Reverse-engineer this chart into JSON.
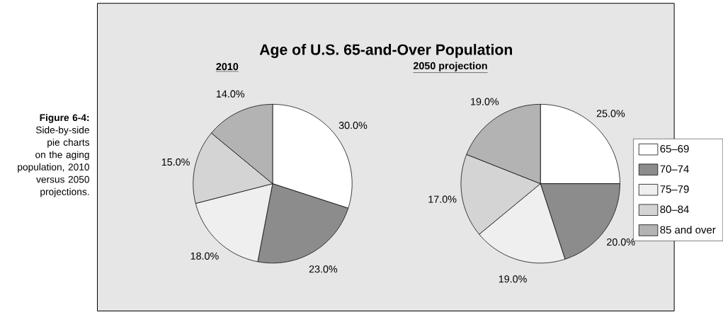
{
  "chart_data": [
    {
      "type": "pie",
      "title": "Age of U.S. 65-and-Over Population",
      "subtitle": "2010",
      "categories": [
        null,
        null,
        null,
        null,
        null
      ],
      "values": [
        30,
        23,
        18,
        15,
        14
      ],
      "value_labels": [
        "30.0%",
        "23.0%",
        "18.0%",
        "15.0%",
        "14.0%"
      ],
      "colors": [
        "#ffffff",
        "#8c8c8c",
        "#efefef",
        "#d4d4d4",
        "#b3b3b3"
      ],
      "annotations": [
        "**Figure 6-4:** Side-by-side pie charts on the aging population, 2010 versus 2050 projections."
      ]
    },
    {
      "type": "pie",
      "subtitle": "2050 projection",
      "categories": [
        "65–69",
        "70–74",
        "75–79",
        "80–84",
        "85 and over"
      ],
      "values": [
        25,
        20,
        19,
        17,
        19
      ],
      "value_labels": [
        "25.0%",
        "20.0%",
        "19.0%",
        "17.0%",
        "19.0%"
      ],
      "colors": [
        "#ffffff",
        "#8c8c8c",
        "#efefef",
        "#d4d4d4",
        "#b3b3b3"
      ],
      "legend": "right"
    }
  ]
}
